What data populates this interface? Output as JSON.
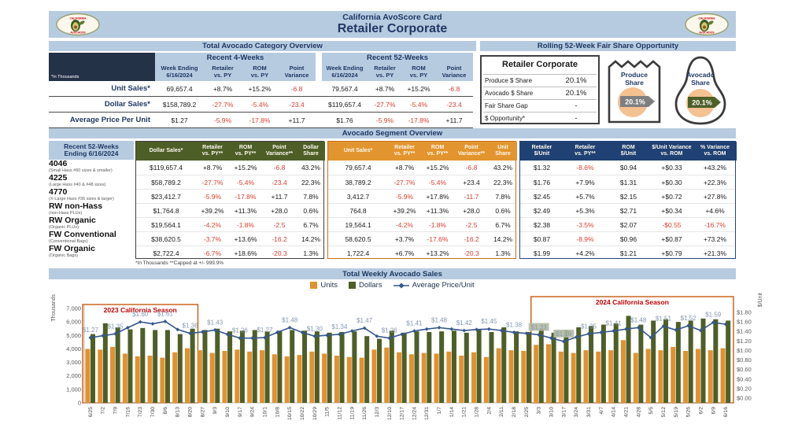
{
  "header": {
    "title_line1": "California AvoScore Card",
    "title_line2": "Retailer Corporate",
    "logo_text_top": "CALIFORNIA",
    "logo_text_bottom": "AVOCADOS"
  },
  "category_overview": {
    "section_title": "Total Avocado Category Overview",
    "note": "*In Thousands",
    "group_headers": [
      "Recent 4-Weeks",
      "Recent 52-Weeks"
    ],
    "columns": [
      [
        "Week Ending",
        "6/16/2024"
      ],
      [
        "Retailer",
        "vs. PY"
      ],
      [
        "ROM",
        "vs. PY"
      ],
      [
        "Point",
        "Variance"
      ]
    ],
    "rows": [
      {
        "label": "Unit Sales*",
        "recent4": [
          "69,657.4",
          "+8.7%",
          "+15.2%",
          "-6.8"
        ],
        "recent52": [
          "79,567.4",
          "+8.7%",
          "+15.2%",
          "-6.8"
        ]
      },
      {
        "label": "Dollar Sales*",
        "recent4": [
          "$158,789.2",
          "-27.7%",
          "-5.4%",
          "-23.4"
        ],
        "recent52": [
          "$119,657.4",
          "-27.7%",
          "-5.4%",
          "-23.4"
        ]
      },
      {
        "label": "Average Price Per Unit",
        "recent4": [
          "$1.27",
          "-5.9%",
          "-17.8%",
          "+11.7"
        ],
        "recent52": [
          "$1.76",
          "-5.9%",
          "-17.8%",
          "+11.7"
        ]
      }
    ]
  },
  "fair_share": {
    "section_title": "Rolling 52-Week Fair Share Opportunity",
    "table": {
      "title": "Retailer Corporate",
      "rows": [
        {
          "label": "Produce $ Share",
          "value": "20.1%"
        },
        {
          "label": "Avocado $ Share",
          "value": "20.1%"
        },
        {
          "label": "Fair Share Gap",
          "value": "-"
        },
        {
          "label": "$ Opportunity*",
          "value": "-"
        }
      ]
    },
    "produce_share": {
      "label_line1": "Produce",
      "label_line2": "Share",
      "value": "20.1%"
    },
    "avocado_share": {
      "label_line1": "Avocado",
      "label_line2": "Share",
      "value": "20.1%"
    }
  },
  "segment_overview": {
    "section_title": "Avocado Segment Overview",
    "row_header": [
      "Recent 52-Weeks",
      "Ending 6/16/2024"
    ],
    "segments": [
      {
        "code": "4046",
        "desc": "(Small Hass #60 sizes & smaller)"
      },
      {
        "code": "4225",
        "desc": "(Large Hass #40 & #48 sizes)"
      },
      {
        "code": "4770",
        "desc": "(X-Large Hass #36 sizes & larger)"
      },
      {
        "code": "RW non-Hass",
        "desc": "(non-Hass PLUs)"
      },
      {
        "code": "RW Organic",
        "desc": "(Organic PLUs)"
      },
      {
        "code": "FW Conventional",
        "desc": "(Conventional Bags)"
      },
      {
        "code": "FW Organic",
        "desc": "(Organic Bags)"
      }
    ],
    "dollar_section": {
      "headers": [
        [
          "Dollar Sales*"
        ],
        [
          "Retailer",
          "vs. PY**"
        ],
        [
          "ROM",
          "vs. PY**"
        ],
        [
          "Point",
          "Variance**"
        ],
        [
          "Dollar",
          "Share"
        ]
      ],
      "rows": [
        [
          "$119,657.4",
          "+8.7%",
          "+15.2%",
          "-6.8",
          "43.2%"
        ],
        [
          "$58,789.2",
          "-27.7%",
          "-5.4%",
          "-23.4",
          "22.3%"
        ],
        [
          "$23,412.7",
          "-5.9%",
          "-17.8%",
          "+11.7",
          "7.8%"
        ],
        [
          "$1,764.8",
          "+39.2%",
          "+11.3%",
          "+28.0",
          "0.6%"
        ],
        [
          "$19,564.1",
          "-4.2%",
          "-1.8%",
          "-2.5",
          "6.7%"
        ],
        [
          "$38,620.5",
          "-3.7%",
          "+13.6%",
          "-16.2",
          "14.2%"
        ],
        [
          "$2,722.4",
          "-6.7%",
          "+18.6%",
          "-20.3",
          "1.3%"
        ]
      ]
    },
    "unit_section": {
      "headers": [
        [
          "Unit Sales*"
        ],
        [
          "Retailer",
          "vs. PY**"
        ],
        [
          "ROM",
          "vs. PY**"
        ],
        [
          "Point",
          "Variance**"
        ],
        [
          "Unit",
          "Share"
        ]
      ],
      "rows": [
        [
          "79,657.4",
          "+8.7%",
          "+15.2%",
          "-6.8",
          "43.2%"
        ],
        [
          "38,789.2",
          "-27.7%",
          "-5.4%",
          "+23.4",
          "22.3%"
        ],
        [
          "3,412.7",
          "-5.9%",
          "+17.8%",
          "-11.7",
          "7.8%"
        ],
        [
          "764.8",
          "+39.2%",
          "+11.3%",
          "+28.0",
          "0.6%"
        ],
        [
          "19,564.1",
          "-4.2%",
          "-1.8%",
          "-2.5",
          "6.7%"
        ],
        [
          "58,620.5",
          "+3.7%",
          "-17.6%",
          "-16.2",
          "14.2%"
        ],
        [
          "1,722.4",
          "+6.7%",
          "+13.2%",
          "-20.3",
          "1.3%"
        ]
      ]
    },
    "price_section": {
      "headers": [
        [
          "Retailer",
          "$/Unit"
        ],
        [
          "Retailer",
          "vs. PY**"
        ],
        [
          "ROM",
          "$/Unit"
        ],
        [
          "$/Unit Variance",
          "vs. ROM"
        ],
        [
          "% Variance",
          "vs. ROM"
        ]
      ],
      "rows": [
        [
          "$1.32",
          "-8.6%",
          "$0.94",
          "+$0.33",
          "+43.2%"
        ],
        [
          "$1.76",
          "+7.9%",
          "$1.31",
          "+$0.30",
          "+22.3%"
        ],
        [
          "$2.45",
          "+5.7%",
          "$2.15",
          "+$0.72",
          "+27.8%"
        ],
        [
          "$2.49",
          "+5.3%",
          "$2.71",
          "+$0.34",
          "+4.6%"
        ],
        [
          "$2.38",
          "-3.5%",
          "$2.07",
          "-$0.55",
          "-16.7%"
        ],
        [
          "$0.87",
          "-8.9%",
          "$0.96",
          "+$0.87",
          "+73.2%"
        ],
        [
          "$1.99",
          "+4.2%",
          "$1.21",
          "+$0.79",
          "+21.3%"
        ]
      ]
    },
    "footnote": "*In Thousands   **Capped at +/- 999.9%"
  },
  "chart_data": {
    "type": "bar+line combo",
    "title": "Total Weekly Avocado Sales",
    "left_axis": {
      "title": "Thousands",
      "min": 0,
      "max": 7000,
      "step": 1000
    },
    "right_axis": {
      "title": "$/Unit",
      "min": 0,
      "max": 1.8,
      "step": 0.2
    },
    "categories": [
      "6/25",
      "7/2",
      "7/9",
      "7/16",
      "7/23",
      "7/30",
      "8/6",
      "8/13",
      "8/20",
      "8/27",
      "9/3",
      "9/10",
      "9/17",
      "9/24",
      "10/1",
      "10/8",
      "10/15",
      "10/22",
      "10/29",
      "11/5",
      "11/12",
      "11/19",
      "11/26",
      "12/3",
      "12/10",
      "12/17",
      "12/24",
      "12/31",
      "1/7",
      "1/14",
      "1/21",
      "1/28",
      "2/4",
      "2/11",
      "2/18",
      "2/25",
      "3/3",
      "3/10",
      "3/17",
      "3/24",
      "3/31",
      "4/7",
      "4/14",
      "4/21",
      "4/28",
      "5/5",
      "5/12",
      "5/19",
      "5/26",
      "6/2",
      "6/9",
      "6/16"
    ],
    "series": [
      {
        "name": "Units",
        "type": "bar",
        "color": "#E2912F",
        "values": [
          4000,
          3950,
          4150,
          3650,
          3450,
          3500,
          3350,
          3750,
          4050,
          3900,
          3700,
          3850,
          3950,
          3800,
          3900,
          3600,
          3450,
          3550,
          3800,
          3650,
          3500,
          3400,
          3350,
          3950,
          4100,
          3750,
          3600,
          3700,
          3650,
          3800,
          3500,
          3750,
          3400,
          4050,
          3900,
          3850,
          4300,
          4350,
          3800,
          3700,
          3900,
          3800,
          3900,
          4650,
          3700,
          4000,
          3900,
          4150,
          3850,
          4000,
          3900,
          4050
        ]
      },
      {
        "name": "Dollars",
        "type": "bar",
        "color": "#4D5F27",
        "values": [
          5100,
          5900,
          5600,
          5450,
          5550,
          5400,
          5400,
          5100,
          5500,
          5400,
          5500,
          5300,
          5350,
          5400,
          5300,
          5350,
          5400,
          5350,
          5300,
          5200,
          5250,
          5300,
          4950,
          4750,
          5350,
          5200,
          5300,
          5250,
          5300,
          5350,
          5200,
          5400,
          5250,
          5600,
          5300,
          5250,
          5500,
          5200,
          5400,
          5600,
          5700,
          5800,
          5900,
          6450,
          5800,
          6100,
          6200,
          6000,
          6100,
          6250,
          6200,
          6100
        ]
      },
      {
        "name": "Average Price/Unit",
        "type": "line",
        "color": "#35578B",
        "values": [
          1.27,
          1.31,
          1.35,
          1.48,
          1.6,
          1.56,
          1.61,
          1.44,
          1.36,
          1.39,
          1.43,
          1.34,
          1.26,
          1.26,
          1.27,
          1.38,
          1.48,
          1.38,
          1.3,
          1.32,
          1.34,
          1.41,
          1.47,
          1.3,
          1.26,
          1.34,
          1.41,
          1.45,
          1.48,
          1.45,
          1.42,
          1.44,
          1.45,
          1.42,
          1.38,
          1.36,
          1.33,
          1.26,
          1.19,
          1.28,
          1.35,
          1.38,
          1.41,
          1.45,
          1.48,
          1.27,
          1.51,
          1.43,
          1.52,
          1.42,
          1.59,
          1.55
        ],
        "point_labels": {
          "0": "$1.27",
          "2": "$1.35",
          "4": "$1.60",
          "6": "$1.61",
          "8": "$1.36",
          "10": "$1.43",
          "12": "$1.26",
          "14": "$1.27",
          "16": "$1.48",
          "18": "$1.30",
          "20": "$1.34",
          "22": "$1.47",
          "24": "$1.26",
          "26": "$1.41",
          "28": "$1.48",
          "30": "$1.42",
          "32": "$1.45",
          "34": "$1.38",
          "36": "$1.33",
          "38": "$1.19",
          "40": "$1.35",
          "42": "$1.41",
          "44": "$1.48",
          "46": "$1.51",
          "48": "$1.52",
          "50": "$1.59"
        },
        "highlighted_labels": [
          36,
          38
        ]
      }
    ],
    "annotations": [
      {
        "label": "2023 California Season",
        "start_index": 0,
        "end_index": 8
      },
      {
        "label": "2024 California Season",
        "start_index": 36,
        "end_index": 51
      }
    ],
    "legend_position": "top-center",
    "grid": false
  },
  "colors": {
    "band_blue": "#B7CBE0",
    "navy": "#1F3864",
    "corner_dark": "#243248",
    "green_header": "#4D5F27",
    "orange_header": "#E2952F",
    "blue_header": "#1F4173",
    "negative_red": "#D8402F",
    "season_box": "#C55A11",
    "season_text": "#C00000",
    "pie_orange": "#F4C191",
    "banner_gray": "#7F7F7F"
  }
}
